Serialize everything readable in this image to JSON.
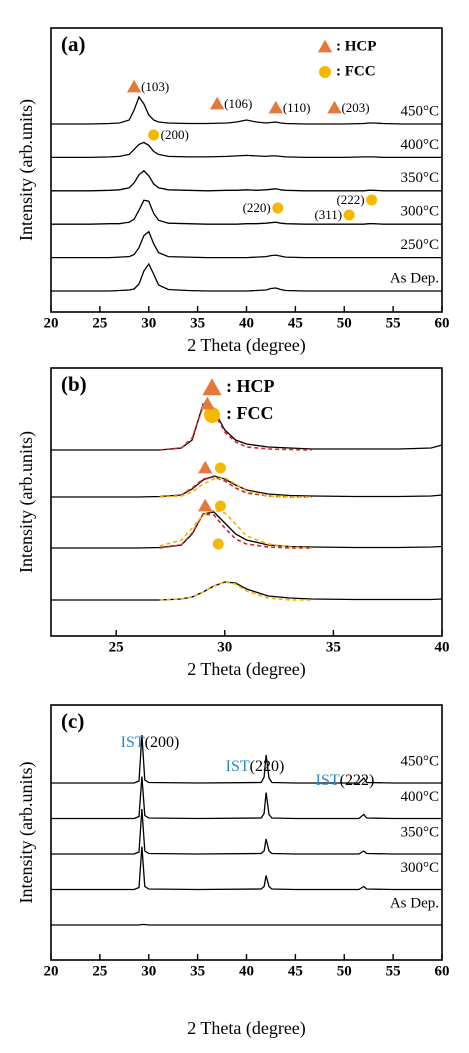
{
  "chart_data": [
    {
      "type": "line",
      "panel_label": "(a)",
      "x_label": "2 Theta (degree)",
      "y_label": "Intensity (arb.units)",
      "xlim": [
        20,
        60
      ],
      "xticks": [
        20,
        25,
        30,
        35,
        40,
        45,
        50,
        55,
        60
      ],
      "x": [
        20,
        22,
        24,
        26,
        27,
        28,
        28.5,
        29,
        29.5,
        30,
        30.5,
        31,
        32,
        34,
        36,
        38,
        39,
        40,
        41,
        42,
        42.5,
        43,
        43.5,
        44,
        46,
        48,
        50,
        52,
        52.5,
        53,
        54,
        56,
        58,
        60
      ],
      "series": [
        {
          "name": "450°C",
          "color": "#000000",
          "values": [
            0,
            0,
            0,
            0.5,
            1,
            4,
            14,
            27,
            20,
            9,
            4,
            2,
            1,
            0.5,
            0.5,
            1,
            2,
            4,
            2,
            1,
            1.5,
            2,
            1,
            0.5,
            0,
            0,
            0,
            0.5,
            1,
            1,
            0.5,
            0,
            0,
            0
          ]
        },
        {
          "name": "400°C",
          "color": "#000000",
          "values": [
            0,
            0,
            0,
            0.5,
            1,
            3,
            8,
            13,
            15,
            12,
            6,
            3,
            1,
            0.5,
            0.5,
            1,
            1.5,
            2,
            1.5,
            1,
            1.5,
            1.5,
            1,
            0.5,
            0,
            0,
            0,
            0.5,
            0.5,
            0.5,
            0,
            0,
            0,
            0
          ]
        },
        {
          "name": "350°C",
          "color": "#000000",
          "values": [
            0,
            0,
            0,
            0.5,
            1,
            3,
            8,
            16,
            20,
            15,
            7,
            3,
            1,
            0.5,
            0,
            0.5,
            0.5,
            1,
            0.5,
            1,
            1.5,
            2,
            1,
            0.5,
            0,
            0,
            0,
            0,
            0.5,
            0.5,
            0,
            0,
            0,
            0
          ]
        },
        {
          "name": "300°C",
          "color": "#000000",
          "values": [
            0,
            0,
            0,
            0.5,
            0.5,
            2,
            5,
            14,
            24,
            23,
            11,
            4,
            1,
            0.5,
            0,
            0,
            0,
            0.5,
            0.5,
            1,
            1.5,
            2,
            1,
            0.5,
            0,
            0,
            0,
            0,
            0.5,
            0.5,
            0,
            0,
            0,
            0
          ]
        },
        {
          "name": "250°C",
          "color": "#000000",
          "values": [
            0,
            0,
            0,
            0,
            0.5,
            1,
            3,
            10,
            22,
            26,
            14,
            5,
            1,
            0.5,
            0,
            0,
            0,
            0,
            0.5,
            1,
            2,
            2.5,
            1.5,
            0.5,
            0,
            0,
            0,
            0,
            0,
            0,
            0,
            0,
            0,
            0
          ]
        },
        {
          "name": "As Dep.",
          "color": "#000000",
          "values": [
            0,
            0,
            0,
            0,
            0.5,
            1,
            2,
            7,
            20,
            27,
            17,
            6,
            1.5,
            0.5,
            0,
            0,
            0,
            0,
            0.5,
            1,
            2.5,
            3,
            1.5,
            0.5,
            0,
            0,
            0,
            0,
            0,
            0,
            0,
            0,
            0,
            0
          ]
        }
      ],
      "legend": [
        {
          "label": ": HCP",
          "marker": "triangle",
          "color": "#e5793b"
        },
        {
          "label": ": FCC",
          "marker": "circle",
          "color": "#f5b800"
        }
      ],
      "annotations": [
        {
          "x": 28.5,
          "label": "(103)",
          "marker": "triangle"
        },
        {
          "x": 37,
          "label": "(106)",
          "marker": "triangle"
        },
        {
          "x": 43,
          "label": "(110)",
          "marker": "triangle"
        },
        {
          "x": 49,
          "label": "(203)",
          "marker": "triangle"
        },
        {
          "x": 30.5,
          "label": "(200)",
          "marker": "circle"
        },
        {
          "x": 43.2,
          "label": "(220)",
          "marker": "circle"
        },
        {
          "x": 50.5,
          "label": "(311)",
          "marker": "circle"
        },
        {
          "x": 52.8,
          "label": "(222)",
          "marker": "circle"
        }
      ]
    },
    {
      "type": "line",
      "panel_label": "(b)",
      "x_label": "2 Theta (degree)",
      "y_label": "Intensity (arb.units)",
      "xlim": [
        22,
        40
      ],
      "xticks": [
        25,
        30,
        35,
        40
      ],
      "x": [
        22,
        24,
        26,
        27,
        28,
        28.5,
        29,
        29.5,
        30,
        30.5,
        31,
        32,
        33,
        34,
        36,
        38,
        39.5,
        40
      ],
      "series": [
        {
          "color": "#000000",
          "values": [
            0,
            0,
            0,
            0,
            2,
            10,
            46,
            40,
            20,
            10,
            6,
            3,
            2,
            1,
            1,
            1,
            2,
            5
          ]
        },
        {
          "color": "#d62728",
          "linestyle": "dashed",
          "values": [
            null,
            null,
            null,
            0,
            2,
            12,
            44,
            38,
            18,
            8,
            3,
            1,
            0.5,
            0,
            null,
            null,
            null,
            null
          ]
        },
        {
          "color": "#000000",
          "values": [
            0,
            0,
            0,
            0.5,
            2,
            8,
            17,
            21,
            18,
            12,
            7,
            3,
            1.5,
            1,
            0.5,
            0.5,
            1,
            2
          ]
        },
        {
          "color": "#d62728",
          "linestyle": "dashed",
          "values": [
            null,
            null,
            null,
            0,
            2,
            9,
            18,
            20,
            16,
            9,
            4,
            1,
            0,
            0,
            null,
            null,
            null,
            null
          ]
        },
        {
          "color": "#f0b400",
          "linestyle": "dashed",
          "values": [
            null,
            null,
            null,
            0,
            1,
            5,
            13,
            18,
            19,
            13,
            6,
            1,
            0,
            0,
            null,
            null,
            null,
            null
          ]
        },
        {
          "color": "#000000",
          "values": [
            0,
            0,
            0,
            0.5,
            3,
            14,
            34,
            36,
            25,
            14,
            8,
            3,
            1.5,
            1,
            0.5,
            0.5,
            1,
            1.5
          ]
        },
        {
          "color": "#d62728",
          "linestyle": "dashed",
          "values": [
            null,
            null,
            null,
            0,
            3,
            15,
            34,
            33,
            20,
            9,
            4,
            1,
            0,
            0,
            null,
            null,
            null,
            null
          ]
        },
        {
          "color": "#f0b400",
          "linestyle": "dashed",
          "values": [
            null,
            null,
            null,
            2,
            8,
            20,
            33,
            38,
            35,
            24,
            12,
            4,
            1,
            0,
            null,
            null,
            null,
            null
          ]
        },
        {
          "color": "#000000",
          "values": [
            0,
            0,
            0,
            0,
            1,
            3,
            8,
            14,
            18,
            17,
            11,
            4,
            2,
            1,
            0.5,
            0.5,
            0.5,
            1
          ]
        },
        {
          "color": "#f0b400",
          "linestyle": "dashed",
          "values": [
            null,
            null,
            null,
            0,
            1,
            3,
            8,
            14,
            18,
            16,
            9,
            2,
            0,
            0,
            null,
            null,
            null,
            null
          ]
        }
      ],
      "legend": [
        {
          "label": ": HCP",
          "marker": "triangle",
          "color": "#e5793b"
        },
        {
          "label": ": FCC",
          "marker": "circle",
          "color": "#f5b800"
        }
      ],
      "annotations": [
        {
          "x": 29.2,
          "marker": "triangle"
        },
        {
          "x": 29.1,
          "marker": "triangle"
        },
        {
          "x": 29.8,
          "marker": "circle"
        },
        {
          "x": 29.1,
          "marker": "triangle"
        },
        {
          "x": 29.8,
          "marker": "circle"
        },
        {
          "x": 29.7,
          "marker": "circle"
        }
      ]
    },
    {
      "type": "line",
      "panel_label": "(c)",
      "x_label": "2 Theta (degree)",
      "y_label": "Intensity (arb.units)",
      "xlim": [
        20,
        60
      ],
      "xticks": [
        20,
        25,
        30,
        35,
        40,
        45,
        50,
        55,
        60
      ],
      "x": [
        20,
        25,
        28.5,
        29,
        29.3,
        29.6,
        30,
        35,
        41.5,
        41.8,
        42,
        42.3,
        42.6,
        45,
        51.5,
        52,
        52.3,
        55,
        60
      ],
      "series": [
        {
          "name": "450°C",
          "color": "#000000",
          "values": [
            0,
            0,
            0,
            2,
            48,
            3,
            0.5,
            0,
            0.5,
            6,
            28,
            5,
            0.5,
            0,
            0,
            5,
            0.5,
            0,
            0
          ]
        },
        {
          "name": "400°C",
          "color": "#000000",
          "values": [
            0,
            0,
            0,
            2,
            42,
            3,
            0.5,
            0,
            0.5,
            5,
            26,
            4,
            0.5,
            0,
            0,
            4,
            0.5,
            0,
            0
          ]
        },
        {
          "name": "350°C",
          "color": "#000000",
          "values": [
            0,
            0,
            0,
            2,
            45,
            3,
            0.5,
            0,
            0.5,
            3,
            15,
            3,
            0.5,
            0,
            0,
            3,
            0.5,
            0,
            0
          ]
        },
        {
          "name": "300°C",
          "color": "#000000",
          "values": [
            0,
            0,
            0,
            2,
            43,
            3,
            0.5,
            0,
            0.5,
            3,
            14,
            3,
            0.5,
            0,
            0,
            3,
            0.5,
            0,
            0
          ]
        },
        {
          "name": "As Dep.",
          "color": "#000000",
          "values": [
            0,
            0,
            0,
            0,
            0.5,
            0.5,
            0,
            0,
            0,
            0,
            0,
            0,
            0,
            0,
            0,
            0,
            0,
            0,
            0
          ]
        }
      ],
      "annotations": [
        {
          "prefix": "IST",
          "label": "(200)",
          "prefix_color": "#2e86c1"
        },
        {
          "prefix": "IST",
          "label": "(220)",
          "prefix_color": "#2e86c1"
        },
        {
          "prefix": "IST",
          "label": "(222)",
          "prefix_color": "#2e86c1"
        }
      ]
    }
  ]
}
